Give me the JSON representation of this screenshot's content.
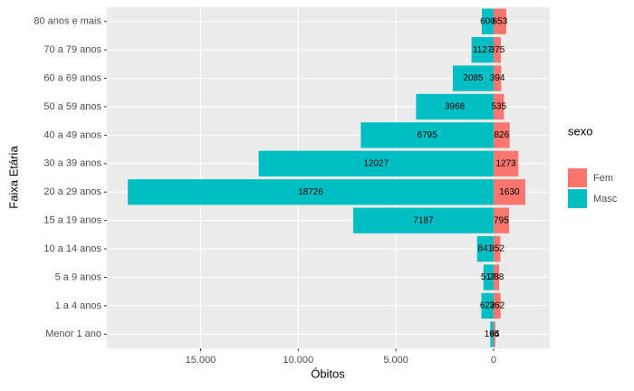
{
  "chart_data": {
    "type": "bar",
    "orientation": "horizontal",
    "stacked": true,
    "x_label": "Óbitos",
    "y_label": "Faixa Etária",
    "legend_title": "sexo",
    "legend_position": "right",
    "grid": true,
    "categories": [
      "Menor 1 ano",
      "1 a 4 anos",
      "5 a 9 anos",
      "10 a 14 anos",
      "15 a 19 anos",
      "20 a 29 anos",
      "30 a 39 anos",
      "40 a 49 anos",
      "50 a 59 anos",
      "60 a 69 anos",
      "70 a 79 anos",
      "80 anos e mais"
    ],
    "series": [
      {
        "name": "Fem",
        "color": "#F8766D",
        "values": [
          94,
          362,
          288,
          352,
          795,
          1630,
          1273,
          826,
          535,
          394,
          375,
          653
        ]
      },
      {
        "name": "Masc",
        "color": "#00BFC4",
        "values": [
          -165,
          -622,
          -517,
          -841,
          -7187,
          -18726,
          -12027,
          -6795,
          -3968,
          -2085,
          -1127,
          -600
        ],
        "value_labels": [
          "165",
          "622",
          "517",
          "841",
          "7187",
          "18726",
          "12027",
          "6795",
          "3968",
          "2085",
          "1127",
          "600"
        ]
      }
    ],
    "xlim": [
      -19800,
      2880
    ],
    "xticks": [
      {
        "value": -15000,
        "label": "15.000"
      },
      {
        "value": -10000,
        "label": "10.000"
      },
      {
        "value": -5000,
        "label": "5.000"
      },
      0
    ]
  }
}
